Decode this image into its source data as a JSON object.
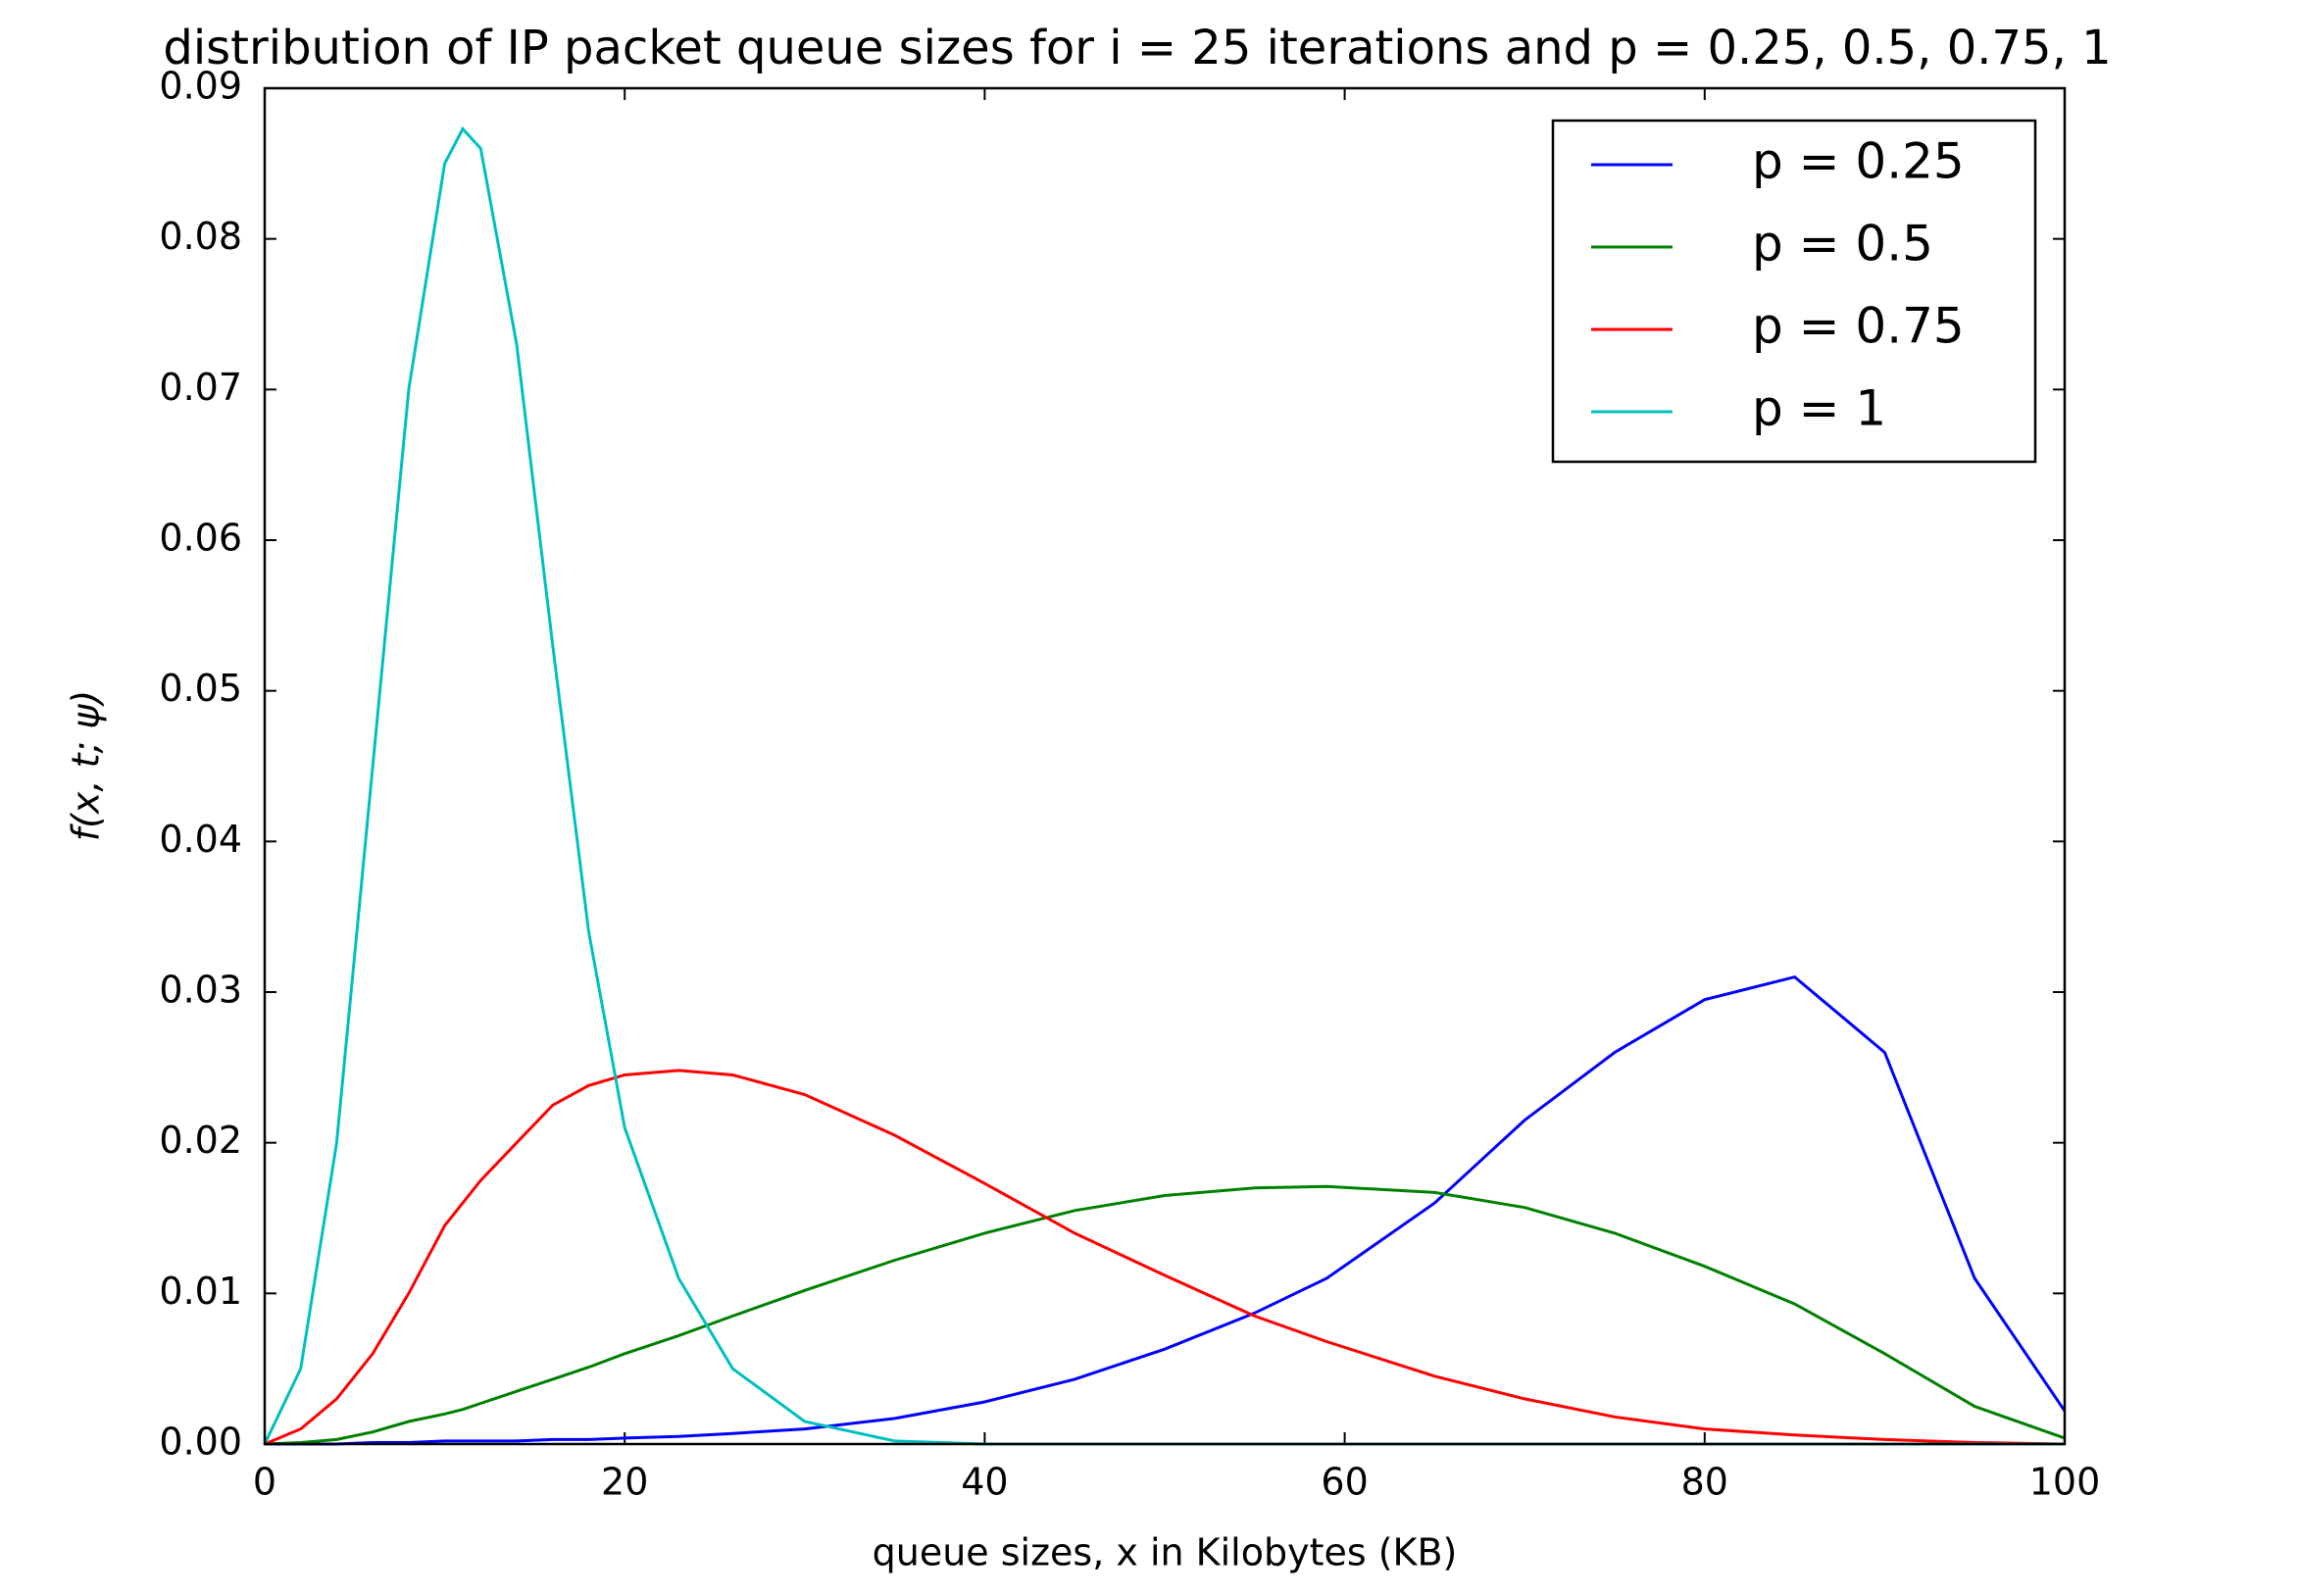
{
  "chart_data": {
    "type": "line",
    "title": "distribution of IP packet queue sizes  for i = 25 iterations and  p = 0.25, 0.5, 0.75, 1",
    "xlabel": "queue sizes, x in Kilobytes (KB)",
    "ylabel": "f(x, t; ψ)",
    "x": [
      0,
      2,
      4,
      6,
      8,
      10,
      11,
      12,
      14,
      16,
      18,
      20,
      23,
      26,
      30,
      35,
      40,
      45,
      50,
      55,
      59,
      65,
      70,
      75,
      80,
      85,
      90,
      95,
      100
    ],
    "series": [
      {
        "name": "p = 0.25",
        "color": "#0000ff",
        "values": [
          0,
          0,
          0,
          0.0001,
          0.0001,
          0.0002,
          0.0002,
          0.0002,
          0.0002,
          0.0003,
          0.0003,
          0.0004,
          0.0005,
          0.0007,
          0.001,
          0.0017,
          0.0028,
          0.0043,
          0.0063,
          0.0087,
          0.011,
          0.016,
          0.0215,
          0.026,
          0.0295,
          0.031,
          0.026,
          0.011,
          0.0022
        ]
      },
      {
        "name": "p = 0.5",
        "color": "#008000",
        "values": [
          0,
          0.0001,
          0.0003,
          0.0008,
          0.0015,
          0.002,
          0.0023,
          0.0027,
          0.0035,
          0.0043,
          0.0051,
          0.006,
          0.0072,
          0.0085,
          0.0102,
          0.0122,
          0.014,
          0.0155,
          0.0165,
          0.017,
          0.0171,
          0.0167,
          0.0157,
          0.014,
          0.0118,
          0.0093,
          0.006,
          0.0025,
          0.0004
        ]
      },
      {
        "name": "p = 0.75",
        "color": "#ff0000",
        "values": [
          0,
          0.001,
          0.003,
          0.006,
          0.01,
          0.0145,
          0.016,
          0.0175,
          0.02,
          0.0225,
          0.0238,
          0.0245,
          0.0248,
          0.0245,
          0.0232,
          0.0205,
          0.0173,
          0.014,
          0.0112,
          0.0085,
          0.0068,
          0.0045,
          0.003,
          0.0018,
          0.001,
          0.0006,
          0.0003,
          0.0001,
          0
        ]
      },
      {
        "name": "p = 1",
        "color": "#00bfbf",
        "values": [
          0,
          0.005,
          0.02,
          0.045,
          0.07,
          0.085,
          0.0873,
          0.086,
          0.073,
          0.053,
          0.034,
          0.021,
          0.011,
          0.005,
          0.0015,
          0.0002,
          0,
          0,
          0,
          0,
          0,
          0,
          0,
          0,
          0,
          0,
          0,
          0,
          0
        ]
      }
    ],
    "xlim": [
      0,
      100
    ],
    "xticks": [
      0,
      20,
      40,
      60,
      80,
      100
    ],
    "ylim": [
      0,
      0.09
    ],
    "yticks": [
      {
        "value": 0,
        "label": "0.00"
      },
      0.01,
      0.02,
      0.03,
      0.04,
      0.05,
      0.06,
      0.07,
      0.08,
      0.09
    ],
    "legend": "upper right",
    "grid": false
  }
}
